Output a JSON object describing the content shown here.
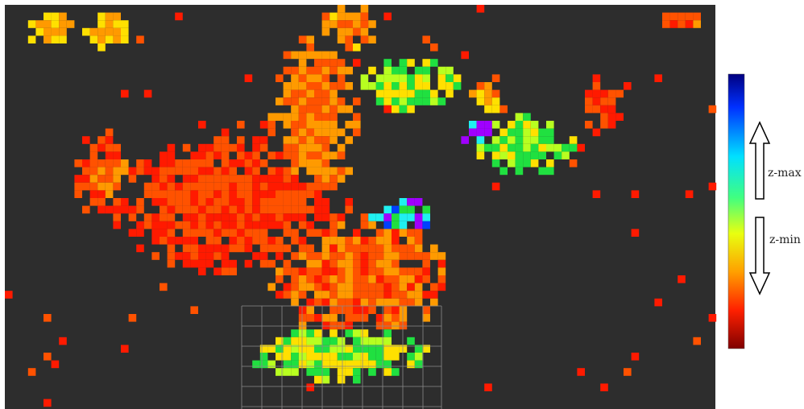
{
  "legend": {
    "max_label": "z-max",
    "min_label": "z-min"
  }
}
